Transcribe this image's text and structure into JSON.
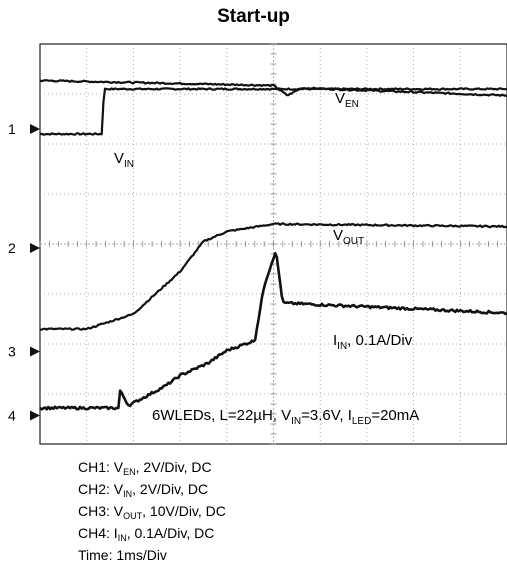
{
  "chart_data": {
    "type": "line",
    "title": "Start-up",
    "grid": true,
    "x_divisions": 10,
    "y_divisions": 8,
    "channel_markers": [
      "1",
      "2",
      "3",
      "4"
    ],
    "series": [
      {
        "name": "V_EN",
        "channel": 1,
        "x": [
          0,
          1.35,
          1.36,
          10
        ],
        "y": [
          -0.1,
          -0.1,
          0.8,
          0.8
        ]
      },
      {
        "name": "V_IN",
        "channel": 2,
        "x": [
          0,
          5.0,
          5.3,
          5.6,
          10
        ],
        "y": [
          3.35,
          3.25,
          3.05,
          3.2,
          3.05
        ]
      },
      {
        "name": "V_OUT",
        "channel": 3,
        "x": [
          0,
          1.0,
          2.0,
          3.0,
          3.5,
          4.0,
          5.0,
          10
        ],
        "y": [
          0.45,
          0.45,
          0.75,
          1.6,
          2.2,
          2.4,
          2.55,
          2.5
        ]
      },
      {
        "name": "I_IN",
        "channel": 4,
        "x": [
          0,
          1.7,
          1.71,
          1.9,
          2.7,
          3.0,
          3.6,
          4.0,
          4.6,
          4.8,
          5.05,
          5.2,
          10
        ],
        "y": [
          0.15,
          0.15,
          0.5,
          0.2,
          0.6,
          0.8,
          1.05,
          1.3,
          1.5,
          2.6,
          3.3,
          2.25,
          2.05
        ]
      }
    ]
  },
  "title": "Start-up",
  "trace_labels": {
    "ven": {
      "main": "V",
      "sub": "EN"
    },
    "vin": {
      "main": "V",
      "sub": "IN"
    },
    "vout": {
      "main": "V",
      "sub": "OUT"
    },
    "iin": {
      "main": "I",
      "sub": "IN",
      "suffix": ", 0.1A/Div"
    }
  },
  "conditions": {
    "p1": "6WLEDs, L=22µH, V",
    "s1": "IN",
    "p2": "=3.6V, I",
    "s2": "LED",
    "p3": "=20mA"
  },
  "legend": [
    {
      "pre": "CH1: V",
      "sub": "EN",
      "post": ", 2V/Div, DC"
    },
    {
      "pre": "CH2: V",
      "sub": "IN",
      "post": ", 2V/Div, DC"
    },
    {
      "pre": "CH3: V",
      "sub": "OUT",
      "post": ", 10V/Div, DC"
    },
    {
      "pre": "CH4: I",
      "sub": "IN",
      "post": ", 0.1A/Div, DC"
    },
    {
      "pre": "Time: 1ms/Div",
      "sub": "",
      "post": ""
    }
  ]
}
